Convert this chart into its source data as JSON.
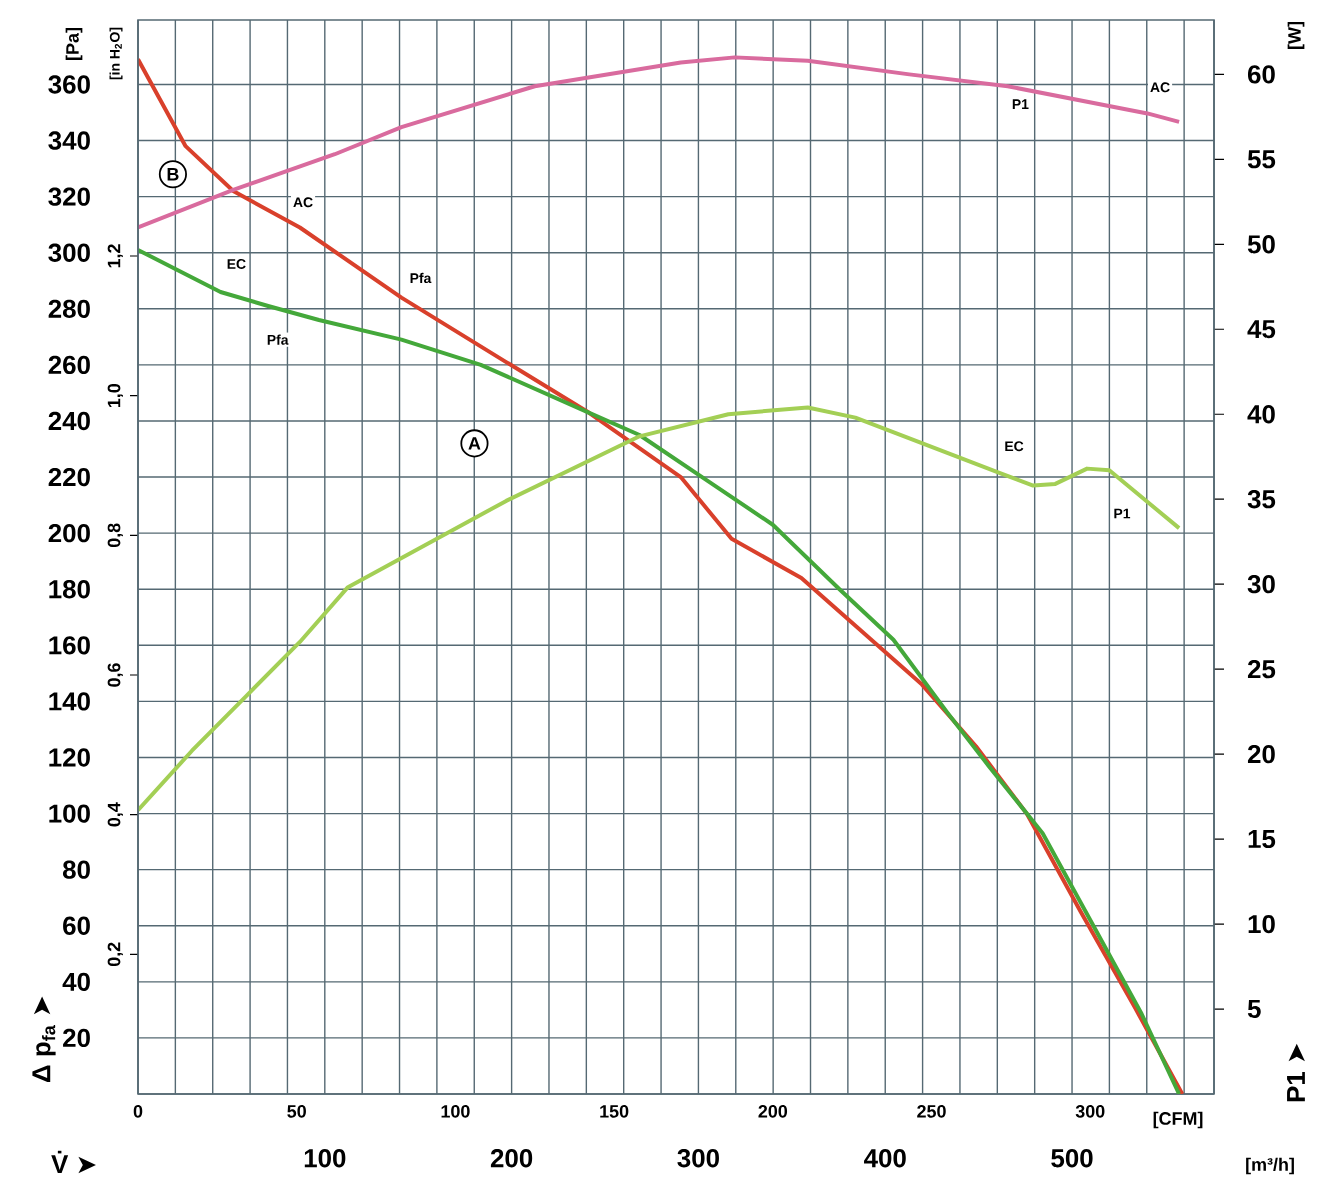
{
  "chart_data": {
    "type": "line",
    "xlabel": "[CFM]",
    "ylabel": "[Pa]",
    "y2label": "[W]",
    "y3label": "[in H$_{2}$O]",
    "x2label": "[m³/h]",
    "xlim": [
      0,
      339
    ],
    "ylim": [
      0,
      383
    ],
    "y2lim": [
      0,
      63.2
    ],
    "y3lim": [
      0,
      1.538
    ],
    "x2lim": [
      0,
      576
    ],
    "xticks": [
      0,
      50,
      100,
      150,
      200,
      250,
      300
    ],
    "yticks": [
      20,
      40,
      60,
      80,
      100,
      120,
      140,
      160,
      180,
      200,
      220,
      240,
      260,
      280,
      300,
      320,
      340,
      360
    ],
    "y2ticks": [
      5,
      10,
      15,
      20,
      25,
      30,
      35,
      40,
      45,
      50,
      55,
      60
    ],
    "y3ticks": [
      {
        "value": 0.2,
        "label": "0,2"
      },
      {
        "value": 0.4,
        "label": "0,4"
      },
      {
        "value": 0.6,
        "label": "0,6"
      },
      {
        "value": 0.8,
        "label": "0,8"
      },
      {
        "value": 1.0,
        "label": "1,0"
      },
      {
        "value": 1.2,
        "label": "1,2"
      }
    ],
    "x2ticks": [
      {
        "value": 20,
        "label": null
      },
      {
        "value": 40,
        "label": null
      },
      {
        "value": 60,
        "label": null
      },
      {
        "value": 80,
        "label": null
      },
      100,
      {
        "value": 120,
        "label": null
      },
      {
        "value": 140,
        "label": null
      },
      {
        "value": 160,
        "label": null
      },
      {
        "value": 180,
        "label": null
      },
      200,
      {
        "value": 220,
        "label": null
      },
      {
        "value": 240,
        "label": null
      },
      {
        "value": 260,
        "label": null
      },
      {
        "value": 280,
        "label": null
      },
      300,
      {
        "value": 320,
        "label": null
      },
      {
        "value": 340,
        "label": null
      },
      {
        "value": 360,
        "label": null
      },
      {
        "value": 380,
        "label": null
      },
      400,
      {
        "value": 420,
        "label": null
      },
      {
        "value": 440,
        "label": null
      },
      {
        "value": 460,
        "label": null
      },
      {
        "value": 480,
        "label": null
      },
      500,
      {
        "value": 520,
        "label": null
      },
      {
        "value": 540,
        "label": null
      },
      {
        "value": 560,
        "label": null
      }
    ],
    "grid": true,
    "series": [
      {
        "color": "#d9402b",
        "x": [
          0,
          15,
          30,
          51,
          83,
          116,
          142,
          171,
          187,
          209,
          247,
          264,
          280,
          297,
          314,
          329
        ],
        "values": [
          369,
          338,
          322,
          309,
          284,
          261,
          243,
          220,
          198,
          184,
          146,
          124,
          100,
          65,
          31,
          0
        ]
      },
      {
        "color": "#44a83a",
        "x": [
          0,
          26,
          41,
          57,
          83,
          108,
          142,
          158,
          179,
          200,
          221,
          238,
          255,
          268,
          285,
          301,
          316,
          328
        ],
        "values": [
          301,
          286,
          281,
          276,
          269,
          260,
          243,
          235,
          219,
          203,
          180,
          162,
          136,
          117,
          93,
          60,
          29,
          0
        ]
      },
      {
        "color": "#d96b9e",
        "axis": "y2",
        "x": [
          0,
          30,
          62,
          83,
          125,
          171,
          188,
          211,
          243,
          274,
          318,
          328
        ],
        "values": [
          51.0,
          53.2,
          55.3,
          56.9,
          59.3,
          60.7,
          61.0,
          60.8,
          60.0,
          59.3,
          57.7,
          57.2
        ]
      },
      {
        "color": "#a3cf55",
        "axis": "y2",
        "x": [
          0,
          17,
          34,
          51,
          66,
          116,
          158,
          186,
          211,
          226,
          272,
          282,
          289,
          299,
          306,
          328
        ],
        "values": [
          16.7,
          20.2,
          23.4,
          26.6,
          29.8,
          34.9,
          38.7,
          40.0,
          40.4,
          39.8,
          36.5,
          35.8,
          35.9,
          36.8,
          36.7,
          33.3
        ]
      }
    ],
    "annotations": [
      "Δ p$_{fa}$ ➤",
      "V̇ ➤",
      "P1 ➤",
      {
        "text": "B",
        "x": 11,
        "y": 328
      },
      {
        "text": "A",
        "x": 106,
        "y": 232
      },
      {
        "text": "AC",
        "x": 52,
        "y": 318
      },
      {
        "text": "Pfa",
        "x": 89,
        "y": 291
      },
      {
        "text": "EC",
        "x": 31,
        "y": 296
      },
      {
        "text": "Pfa",
        "x": 44,
        "y": 269
      },
      {
        "text": "P1",
        "x": 278,
        "y": 353
      },
      {
        "text": "AC",
        "x": 322,
        "y": 359
      },
      {
        "text": "EC",
        "x": 276,
        "y": 231
      },
      {
        "text": "P1",
        "x": 310,
        "y": 207
      }
    ]
  }
}
